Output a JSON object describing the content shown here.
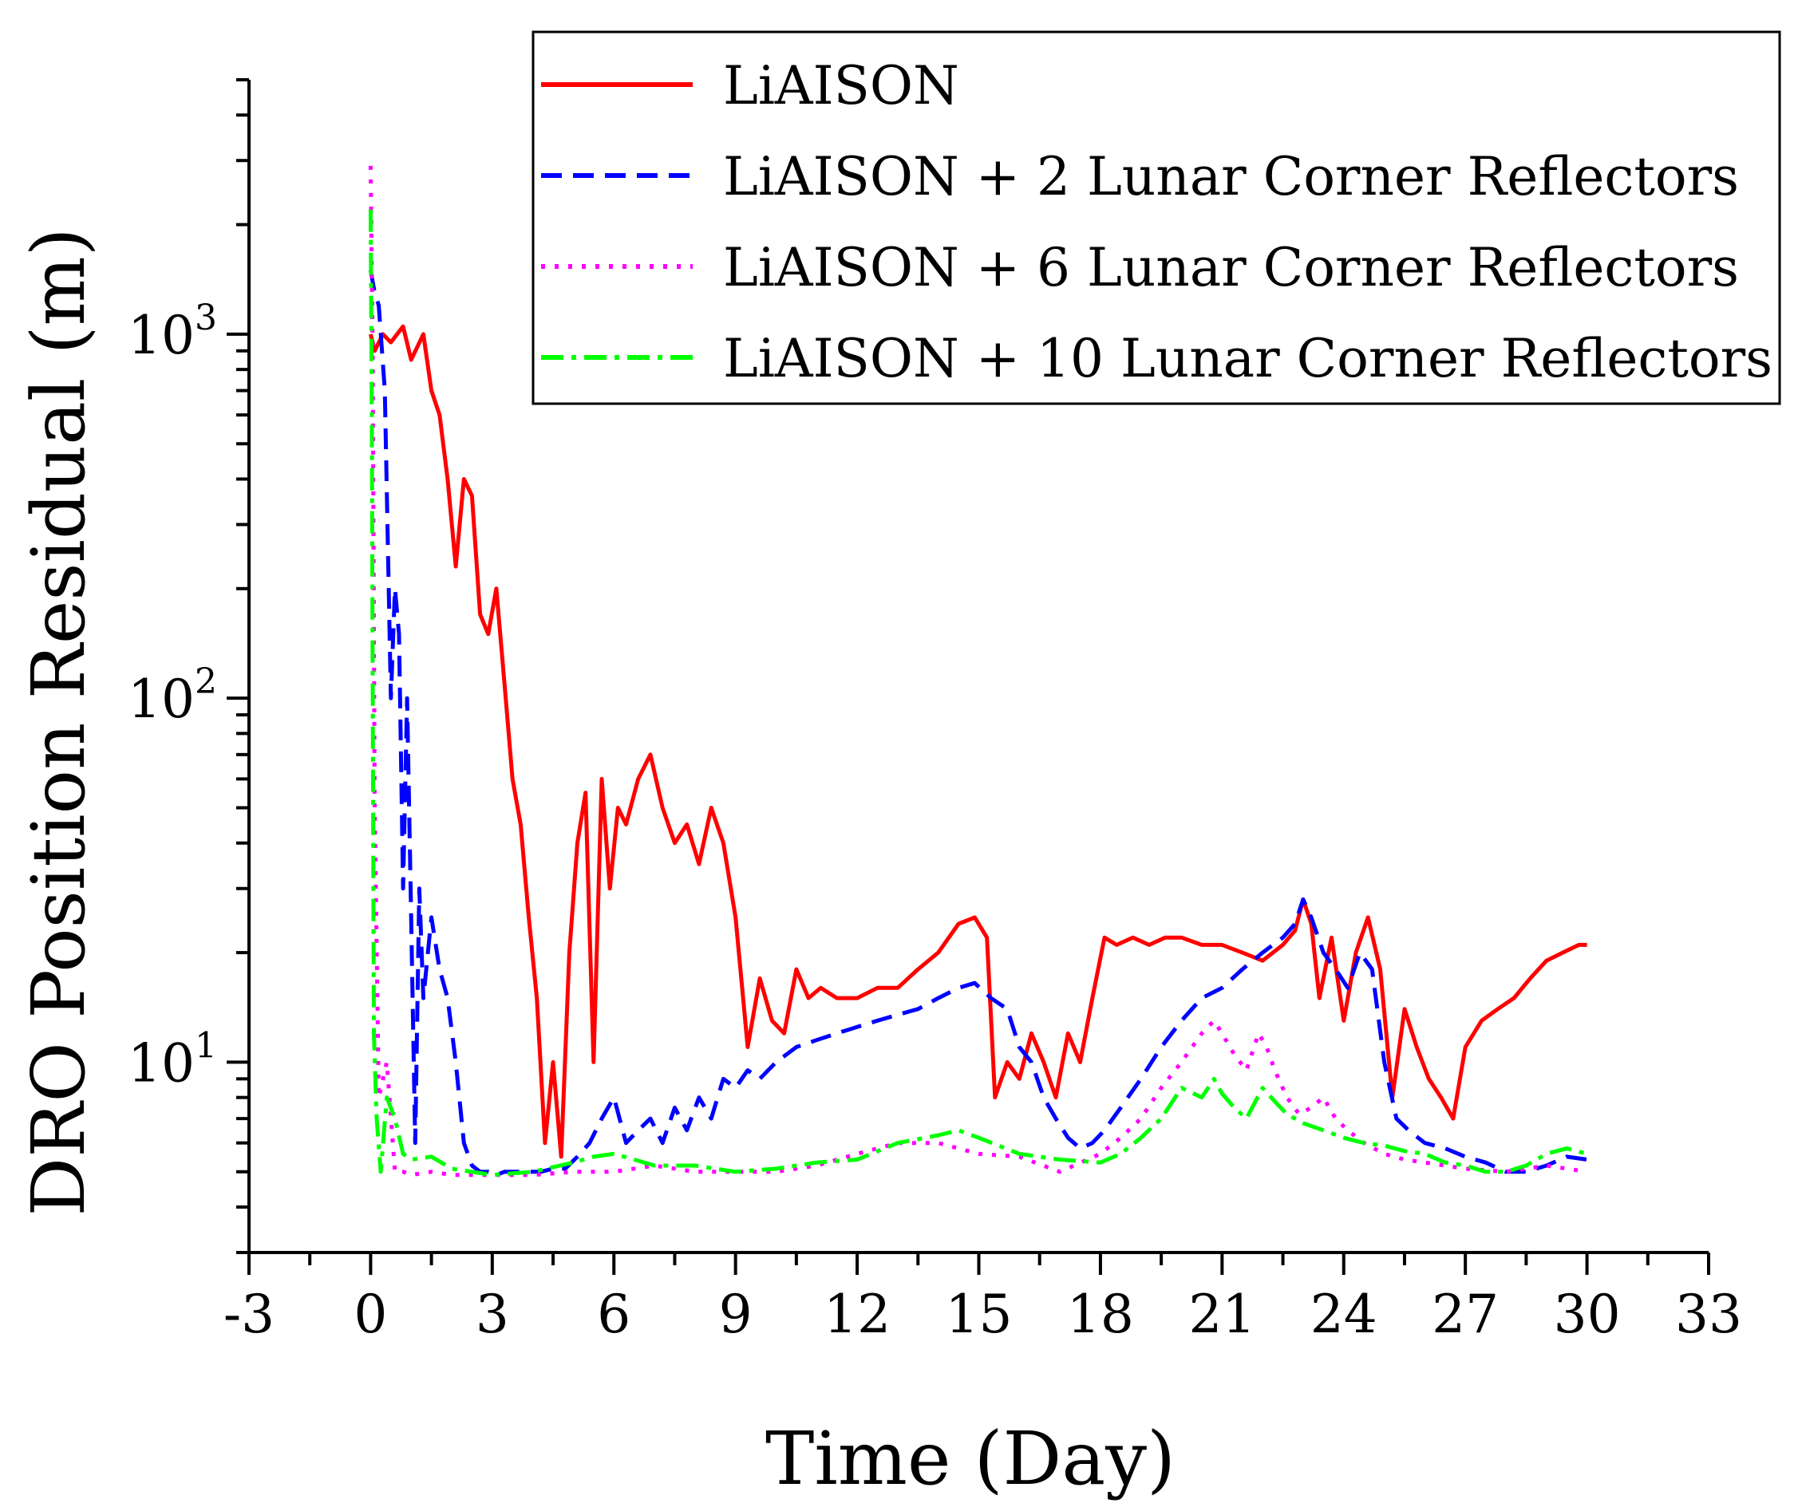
{
  "chart_data": {
    "type": "line",
    "title": "",
    "xlabel": "Time (Day)",
    "ylabel": "DRO Position Residual (m)",
    "xlim": [
      -3,
      33
    ],
    "ylim": [
      3,
      5000
    ],
    "yscale": "log",
    "xticks": [
      "-3",
      "0",
      "3",
      "6",
      "9",
      "12",
      "15",
      "18",
      "21",
      "24",
      "27",
      "30",
      "33"
    ],
    "yticks": [
      {
        "base": "10",
        "exp": "1",
        "value": 10
      },
      {
        "base": "10",
        "exp": "2",
        "value": 100
      },
      {
        "base": "10",
        "exp": "3",
        "value": 1000
      }
    ],
    "grid": false,
    "legend_position": "top-right",
    "series": [
      {
        "name": "LiAISON",
        "color": "#ff0000",
        "dash": "solid",
        "x": [
          0,
          0.1,
          0.3,
          0.5,
          0.8,
          1.0,
          1.3,
          1.5,
          1.7,
          1.9,
          2.1,
          2.3,
          2.5,
          2.7,
          2.9,
          3.1,
          3.3,
          3.5,
          3.7,
          3.9,
          4.1,
          4.3,
          4.5,
          4.7,
          4.9,
          5.1,
          5.3,
          5.5,
          5.7,
          5.9,
          6.1,
          6.3,
          6.6,
          6.9,
          7.2,
          7.5,
          7.8,
          8.1,
          8.4,
          8.7,
          9.0,
          9.3,
          9.6,
          9.9,
          10.2,
          10.5,
          10.8,
          11.1,
          11.5,
          12.0,
          12.5,
          13.0,
          13.5,
          14.0,
          14.5,
          14.9,
          15.2,
          15.4,
          15.7,
          16.0,
          16.3,
          16.6,
          16.9,
          17.2,
          17.5,
          17.8,
          18.1,
          18.4,
          18.8,
          19.2,
          19.6,
          20.0,
          20.5,
          21.0,
          21.5,
          22.0,
          22.5,
          22.8,
          23.0,
          23.2,
          23.4,
          23.7,
          24.0,
          24.3,
          24.6,
          24.9,
          25.2,
          25.5,
          25.8,
          26.1,
          26.4,
          26.7,
          27.0,
          27.4,
          27.8,
          28.2,
          28.6,
          29.0,
          29.4,
          29.8,
          30.0
        ],
        "y": [
          1000,
          900,
          1000,
          950,
          1050,
          850,
          1000,
          700,
          600,
          400,
          230,
          400,
          360,
          170,
          150,
          200,
          110,
          60,
          45,
          25,
          15,
          6,
          10,
          5.5,
          20,
          40,
          55,
          10,
          60,
          30,
          50,
          45,
          60,
          70,
          50,
          40,
          45,
          35,
          50,
          40,
          25,
          11,
          17,
          13,
          12,
          18,
          15,
          16,
          15,
          15,
          16,
          16,
          18,
          20,
          24,
          25,
          22,
          8,
          10,
          9,
          12,
          10,
          8,
          12,
          10,
          15,
          22,
          21,
          22,
          21,
          22,
          22,
          21,
          21,
          20,
          19,
          21,
          23,
          28,
          24,
          15,
          22,
          13,
          20,
          25,
          18,
          8,
          14,
          11,
          9,
          8,
          7,
          11,
          13,
          14,
          15,
          17,
          19,
          20,
          21,
          21
        ]
      },
      {
        "name": "LiAISON + 2 Lunar Corner Reflectors",
        "color": "#0000ff",
        "dash": "dashed",
        "x": [
          0,
          0.1,
          0.2,
          0.35,
          0.5,
          0.6,
          0.7,
          0.8,
          0.9,
          1.0,
          1.1,
          1.2,
          1.3,
          1.5,
          1.7,
          1.9,
          2.1,
          2.3,
          2.5,
          2.7,
          2.9,
          3.1,
          3.3,
          3.6,
          3.9,
          4.2,
          4.5,
          4.8,
          5.1,
          5.4,
          5.7,
          6.0,
          6.3,
          6.6,
          6.9,
          7.2,
          7.5,
          7.8,
          8.1,
          8.4,
          8.7,
          9.0,
          9.3,
          9.6,
          10.0,
          10.5,
          11.0,
          11.5,
          12.0,
          12.5,
          13.0,
          13.5,
          14.0,
          14.5,
          14.9,
          15.3,
          15.7,
          16.0,
          16.3,
          16.6,
          16.9,
          17.2,
          17.5,
          17.8,
          18.1,
          18.5,
          19.0,
          19.5,
          20.0,
          20.5,
          21.0,
          21.5,
          22.0,
          22.5,
          22.8,
          23.0,
          23.2,
          23.5,
          23.8,
          24.1,
          24.4,
          24.7,
          25.0,
          25.3,
          25.6,
          26.0,
          26.5,
          27.0,
          27.5,
          28.0,
          28.5,
          29.0,
          29.5,
          30.0
        ],
        "y": [
          1500,
          1300,
          1200,
          700,
          100,
          200,
          150,
          30,
          100,
          25,
          6,
          30,
          15,
          25,
          18,
          15,
          10,
          6,
          5.2,
          5.0,
          5.0,
          4.9,
          5.0,
          5.0,
          5.0,
          5.0,
          5.1,
          5.1,
          5.5,
          6.0,
          7.0,
          8.0,
          6.0,
          6.5,
          7.0,
          6.0,
          7.5,
          6.5,
          8.0,
          7.0,
          9.0,
          8.5,
          9.5,
          9.0,
          10.0,
          11.0,
          11.5,
          12.0,
          12.5,
          13.0,
          13.5,
          14.0,
          15.0,
          16.0,
          16.5,
          15.0,
          14.0,
          11.0,
          10.0,
          8.0,
          7.0,
          6.2,
          5.8,
          6.0,
          6.5,
          7.5,
          9.0,
          11.0,
          13.0,
          15.0,
          16.0,
          18.0,
          20.0,
          22.0,
          24.0,
          28.0,
          25.0,
          20.0,
          18.0,
          16.0,
          20.0,
          18.0,
          10.0,
          7.0,
          6.5,
          6.0,
          5.8,
          5.5,
          5.3,
          5.0,
          5.0,
          5.2,
          5.5,
          5.4
        ]
      },
      {
        "name": "LiAISON + 6 Lunar Corner Reflectors",
        "color": "#ff00ff",
        "dash": "dotted",
        "x": [
          0,
          0.05,
          0.1,
          0.2,
          0.4,
          0.6,
          0.8,
          1.0,
          1.5,
          2.0,
          3.0,
          4.0,
          5.0,
          6.0,
          7.0,
          8.0,
          9.0,
          10.0,
          11.0,
          12.0,
          13.0,
          14.0,
          15.0,
          16.0,
          17.0,
          18.0,
          18.5,
          19.0,
          19.5,
          20.0,
          20.5,
          20.8,
          21.0,
          21.3,
          21.6,
          21.9,
          22.1,
          22.3,
          22.6,
          22.9,
          23.2,
          23.5,
          23.8,
          24.1,
          24.5,
          25.0,
          25.5,
          26.0,
          26.5,
          27.0,
          28.0,
          29.0,
          30.0
        ],
        "y": [
          2900,
          900,
          50,
          8,
          10,
          5.0,
          5.0,
          4.9,
          5.0,
          4.9,
          4.9,
          4.9,
          5.0,
          5.0,
          5.2,
          5.0,
          5.0,
          5.0,
          5.2,
          5.6,
          6.0,
          6.0,
          5.6,
          5.5,
          5.0,
          5.6,
          6.2,
          7.0,
          8.5,
          10.0,
          12.0,
          13.0,
          12.0,
          10.5,
          9.5,
          12.0,
          11.0,
          9.5,
          8.0,
          7.2,
          7.5,
          8.0,
          7.0,
          6.5,
          6.0,
          5.6,
          5.4,
          5.3,
          5.2,
          5.1,
          5.0,
          5.2,
          5.0
        ]
      },
      {
        "name": "LiAISON + 10 Lunar Corner Reflectors",
        "color": "#00ff00",
        "dash": "dashdot",
        "x": [
          0,
          0.03,
          0.08,
          0.15,
          0.25,
          0.4,
          0.6,
          0.8,
          1.0,
          1.5,
          2.0,
          3.0,
          4.0,
          5.0,
          5.5,
          6.0,
          6.5,
          7.0,
          8.0,
          9.0,
          10.0,
          11.0,
          12.0,
          13.0,
          14.0,
          14.5,
          15.0,
          16.0,
          17.0,
          18.0,
          18.5,
          19.0,
          19.5,
          20.0,
          20.5,
          20.8,
          21.0,
          21.3,
          21.6,
          22.0,
          22.3,
          22.6,
          23.0,
          23.5,
          24.0,
          24.5,
          25.0,
          25.5,
          26.0,
          26.5,
          27.0,
          27.5,
          28.0,
          28.5,
          29.0,
          29.5,
          30.0
        ],
        "y": [
          2200,
          600,
          12,
          7,
          5.0,
          8.0,
          7.0,
          5.6,
          5.4,
          5.5,
          5.1,
          4.9,
          5.0,
          5.3,
          5.5,
          5.6,
          5.4,
          5.2,
          5.2,
          5.0,
          5.1,
          5.3,
          5.4,
          6.0,
          6.3,
          6.5,
          6.2,
          5.6,
          5.4,
          5.3,
          5.6,
          6.2,
          7.0,
          8.5,
          8.0,
          9.0,
          8.2,
          7.5,
          7.0,
          8.5,
          7.8,
          7.2,
          6.8,
          6.5,
          6.2,
          6.0,
          5.9,
          5.7,
          5.6,
          5.3,
          5.2,
          5.0,
          5.0,
          5.2,
          5.6,
          5.8,
          5.6
        ]
      }
    ]
  }
}
